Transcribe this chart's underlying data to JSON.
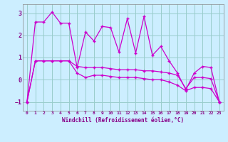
{
  "xlabel": "Windchill (Refroidissement éolien,°C)",
  "background_color": "#cceeff",
  "grid_color": "#99cccc",
  "line_color": "#cc00cc",
  "xlim": [
    -0.5,
    23.5
  ],
  "ylim": [
    -1.4,
    3.4
  ],
  "yticks": [
    -1,
    0,
    1,
    2,
    3
  ],
  "xticks": [
    0,
    1,
    2,
    3,
    4,
    5,
    6,
    7,
    8,
    9,
    10,
    11,
    12,
    13,
    14,
    15,
    16,
    17,
    18,
    19,
    20,
    21,
    22,
    23
  ],
  "line1_x": [
    0,
    1,
    2,
    3,
    4,
    5,
    6,
    7,
    8,
    9,
    10,
    11,
    12,
    13,
    14,
    15,
    16,
    17,
    18,
    19,
    20,
    21,
    22,
    23
  ],
  "line1_y": [
    -1.0,
    2.6,
    2.6,
    3.05,
    2.55,
    2.55,
    0.55,
    2.15,
    1.75,
    2.4,
    2.35,
    1.25,
    2.75,
    1.2,
    2.85,
    1.1,
    1.5,
    0.85,
    0.3,
    -0.45,
    0.3,
    0.6,
    0.55,
    -1.0
  ],
  "line2_x": [
    0,
    1,
    2,
    3,
    4,
    5,
    6,
    7,
    8,
    9,
    10,
    11,
    12,
    13,
    14,
    15,
    16,
    17,
    18,
    19,
    20,
    21,
    22,
    23
  ],
  "line2_y": [
    -1.0,
    0.85,
    0.85,
    0.85,
    0.85,
    0.85,
    0.6,
    0.55,
    0.55,
    0.55,
    0.5,
    0.45,
    0.45,
    0.45,
    0.4,
    0.4,
    0.35,
    0.3,
    0.2,
    -0.4,
    0.1,
    0.1,
    0.05,
    -1.0
  ],
  "line3_x": [
    0,
    1,
    2,
    3,
    4,
    5,
    6,
    7,
    8,
    9,
    10,
    11,
    12,
    13,
    14,
    15,
    16,
    17,
    18,
    19,
    20,
    21,
    22,
    23
  ],
  "line3_y": [
    -1.0,
    0.85,
    0.85,
    0.85,
    0.85,
    0.85,
    0.3,
    0.1,
    0.2,
    0.2,
    0.15,
    0.1,
    0.1,
    0.1,
    0.05,
    0.0,
    -0.0,
    -0.1,
    -0.25,
    -0.5,
    -0.35,
    -0.35,
    -0.4,
    -1.0
  ]
}
